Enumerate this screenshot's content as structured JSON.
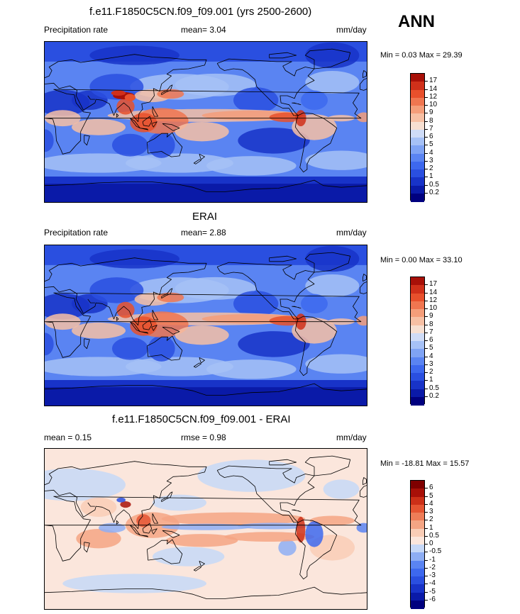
{
  "season": "ANN",
  "units": "mm/day",
  "panels": [
    {
      "title": "f.e11.F1850C5CN.f09_f09.001 (yrs 2500-2600)",
      "left_label": "Precipitation rate",
      "mid_label": "mean=   3.04",
      "right_label": "mm/day",
      "minmax": "Min =   0.03 Max =  29.39",
      "scheme": "precip"
    },
    {
      "title": "ERAI",
      "left_label": "Precipitation rate",
      "mid_label": "mean=   2.88",
      "right_label": "mm/day",
      "minmax": "Min =   0.00 Max =  33.10",
      "scheme": "precip"
    },
    {
      "title": "f.e11.F1850C5CN.f09_f09.001 - ERAI",
      "left_label": "mean =   0.15",
      "mid_label": "rmse =   0.98",
      "right_label": "mm/day",
      "minmax": "Min = -18.81 Max =  15.57",
      "scheme": "diff"
    }
  ],
  "chart_data": [
    {
      "type": "heatmap",
      "title": "f.e11.F1850C5CN.f09_f09.001 (yrs 2500-2600)",
      "variable": "Precipitation rate",
      "units": "mm/day",
      "mean": 3.04,
      "min": 0.03,
      "max": 29.39,
      "contour_levels": [
        0.2,
        0.5,
        1,
        2,
        3,
        4,
        5,
        6,
        7,
        8,
        9,
        10,
        12,
        14,
        17
      ],
      "colors": [
        "#00007f",
        "#0a1aa8",
        "#1833c8",
        "#2a4fe0",
        "#3d68ee",
        "#5a84f2",
        "#7fa3f4",
        "#a6c1f6",
        "#cfdcf7",
        "#f7e0d2",
        "#f7c0a4",
        "#f59e7a",
        "#f07650",
        "#e8502c",
        "#d0301a",
        "#a81008"
      ]
    },
    {
      "type": "heatmap",
      "title": "ERAI",
      "variable": "Precipitation rate",
      "units": "mm/day",
      "mean": 2.88,
      "min": 0.0,
      "max": 33.1,
      "contour_levels": [
        0.2,
        0.5,
        1,
        2,
        3,
        4,
        5,
        6,
        7,
        8,
        9,
        10,
        12,
        14,
        17
      ],
      "colors": [
        "#00007f",
        "#0a1aa8",
        "#1833c8",
        "#2a4fe0",
        "#3d68ee",
        "#5a84f2",
        "#7fa3f4",
        "#a6c1f6",
        "#cfdcf7",
        "#f7e0d2",
        "#f7c0a4",
        "#f59e7a",
        "#f07650",
        "#e8502c",
        "#d0301a",
        "#a81008"
      ]
    },
    {
      "type": "heatmap",
      "title": "f.e11.F1850C5CN.f09_f09.001 - ERAI",
      "units": "mm/day",
      "mean": 0.15,
      "rmse": 0.98,
      "min": -18.81,
      "max": 15.57,
      "contour_levels": [
        -6,
        -5,
        -4,
        -3,
        -2,
        -1,
        -0.5,
        0,
        0.5,
        1,
        2,
        3,
        4,
        5,
        6
      ],
      "colors": [
        "#00007f",
        "#0a1aa8",
        "#1833c8",
        "#2a4fe0",
        "#3d68ee",
        "#5a84f2",
        "#8eaef4",
        "#c6d8f7",
        "#fbe6dc",
        "#f9cdb6",
        "#f4a584",
        "#ee7d58",
        "#e55532",
        "#cc3018",
        "#a81008",
        "#7f0000"
      ]
    }
  ]
}
